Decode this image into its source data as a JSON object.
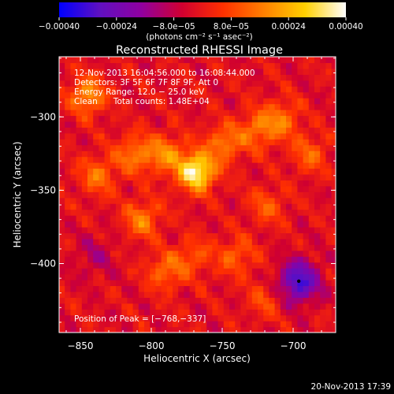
{
  "chart_data": {
    "type": "heatmap",
    "title": "Reconstructed RHESSI Image",
    "xlabel": "Heliocentric X (arcsec)",
    "ylabel": "Heliocentric Y (arcsec)",
    "xlim": [
      -865,
      -670
    ],
    "ylim": [
      -447,
      -259
    ],
    "x_ticks": [
      -850,
      -800,
      -750,
      -700
    ],
    "x_tick_labels": [
      "−850",
      "−800",
      "−750",
      "−700"
    ],
    "y_ticks": [
      -300,
      -350,
      -400
    ],
    "y_tick_labels": [
      "−300",
      "−350",
      "−400"
    ],
    "colorbar": {
      "min": -0.0004,
      "max": 0.0004,
      "ticks": [
        -0.0004,
        -0.00024,
        -8e-05,
        8e-05,
        0.00024,
        0.0004
      ],
      "tick_labels": [
        "−0.00040",
        "−0.00024",
        "−8.0e−05",
        "8.0e−05",
        "0.00024",
        "0.00040"
      ],
      "unit_label": "(photons cm⁻² s⁻¹ asec⁻²)",
      "colors": [
        "#0000ff",
        "#6010c0",
        "#9000a0",
        "#d00030",
        "#ff3000",
        "#ff8000",
        "#ffd000",
        "#ffffff"
      ]
    },
    "annotations": [
      "12-Nov-2013 16:04:56.000 to 16:08:44.000",
      "Detectors: 3F 5F 6F 7F 8F 9F, Att 0",
      "Energy Range: 12.0 − 25.0 keV",
      "Clean      Total counts: 1.48E+04"
    ],
    "peak_label": "Position of Peak = [−768,−337]",
    "peak": [
      -768,
      -337
    ],
    "emission_sources": [
      {
        "x": -768,
        "y": -337,
        "value": 0.0004
      },
      {
        "x": -845,
        "y": -285,
        "value": 0.00022
      },
      {
        "x": -812,
        "y": -325,
        "value": 0.00018
      },
      {
        "x": -790,
        "y": -325,
        "value": 0.0002
      },
      {
        "x": -748,
        "y": -318,
        "value": 0.00018
      },
      {
        "x": -725,
        "y": -308,
        "value": 0.00016
      },
      {
        "x": -708,
        "y": -302,
        "value": 0.00016
      },
      {
        "x": -688,
        "y": -325,
        "value": 0.00014
      },
      {
        "x": -838,
        "y": -340,
        "value": 0.00016
      },
      {
        "x": -806,
        "y": -370,
        "value": 0.00018
      },
      {
        "x": -790,
        "y": -405,
        "value": 0.00016
      },
      {
        "x": -770,
        "y": -395,
        "value": 0.00012
      },
      {
        "x": -740,
        "y": -395,
        "value": 0.00014
      },
      {
        "x": -718,
        "y": -360,
        "value": 0.00012
      },
      {
        "x": -720,
        "y": -425,
        "value": 0.0001
      },
      {
        "x": -696,
        "y": -412,
        "value": -0.0003
      },
      {
        "x": -840,
        "y": -395,
        "value": -8e-05
      }
    ],
    "grid": false,
    "legend": "none"
  },
  "footer_date": "20-Nov-2013 17:39"
}
